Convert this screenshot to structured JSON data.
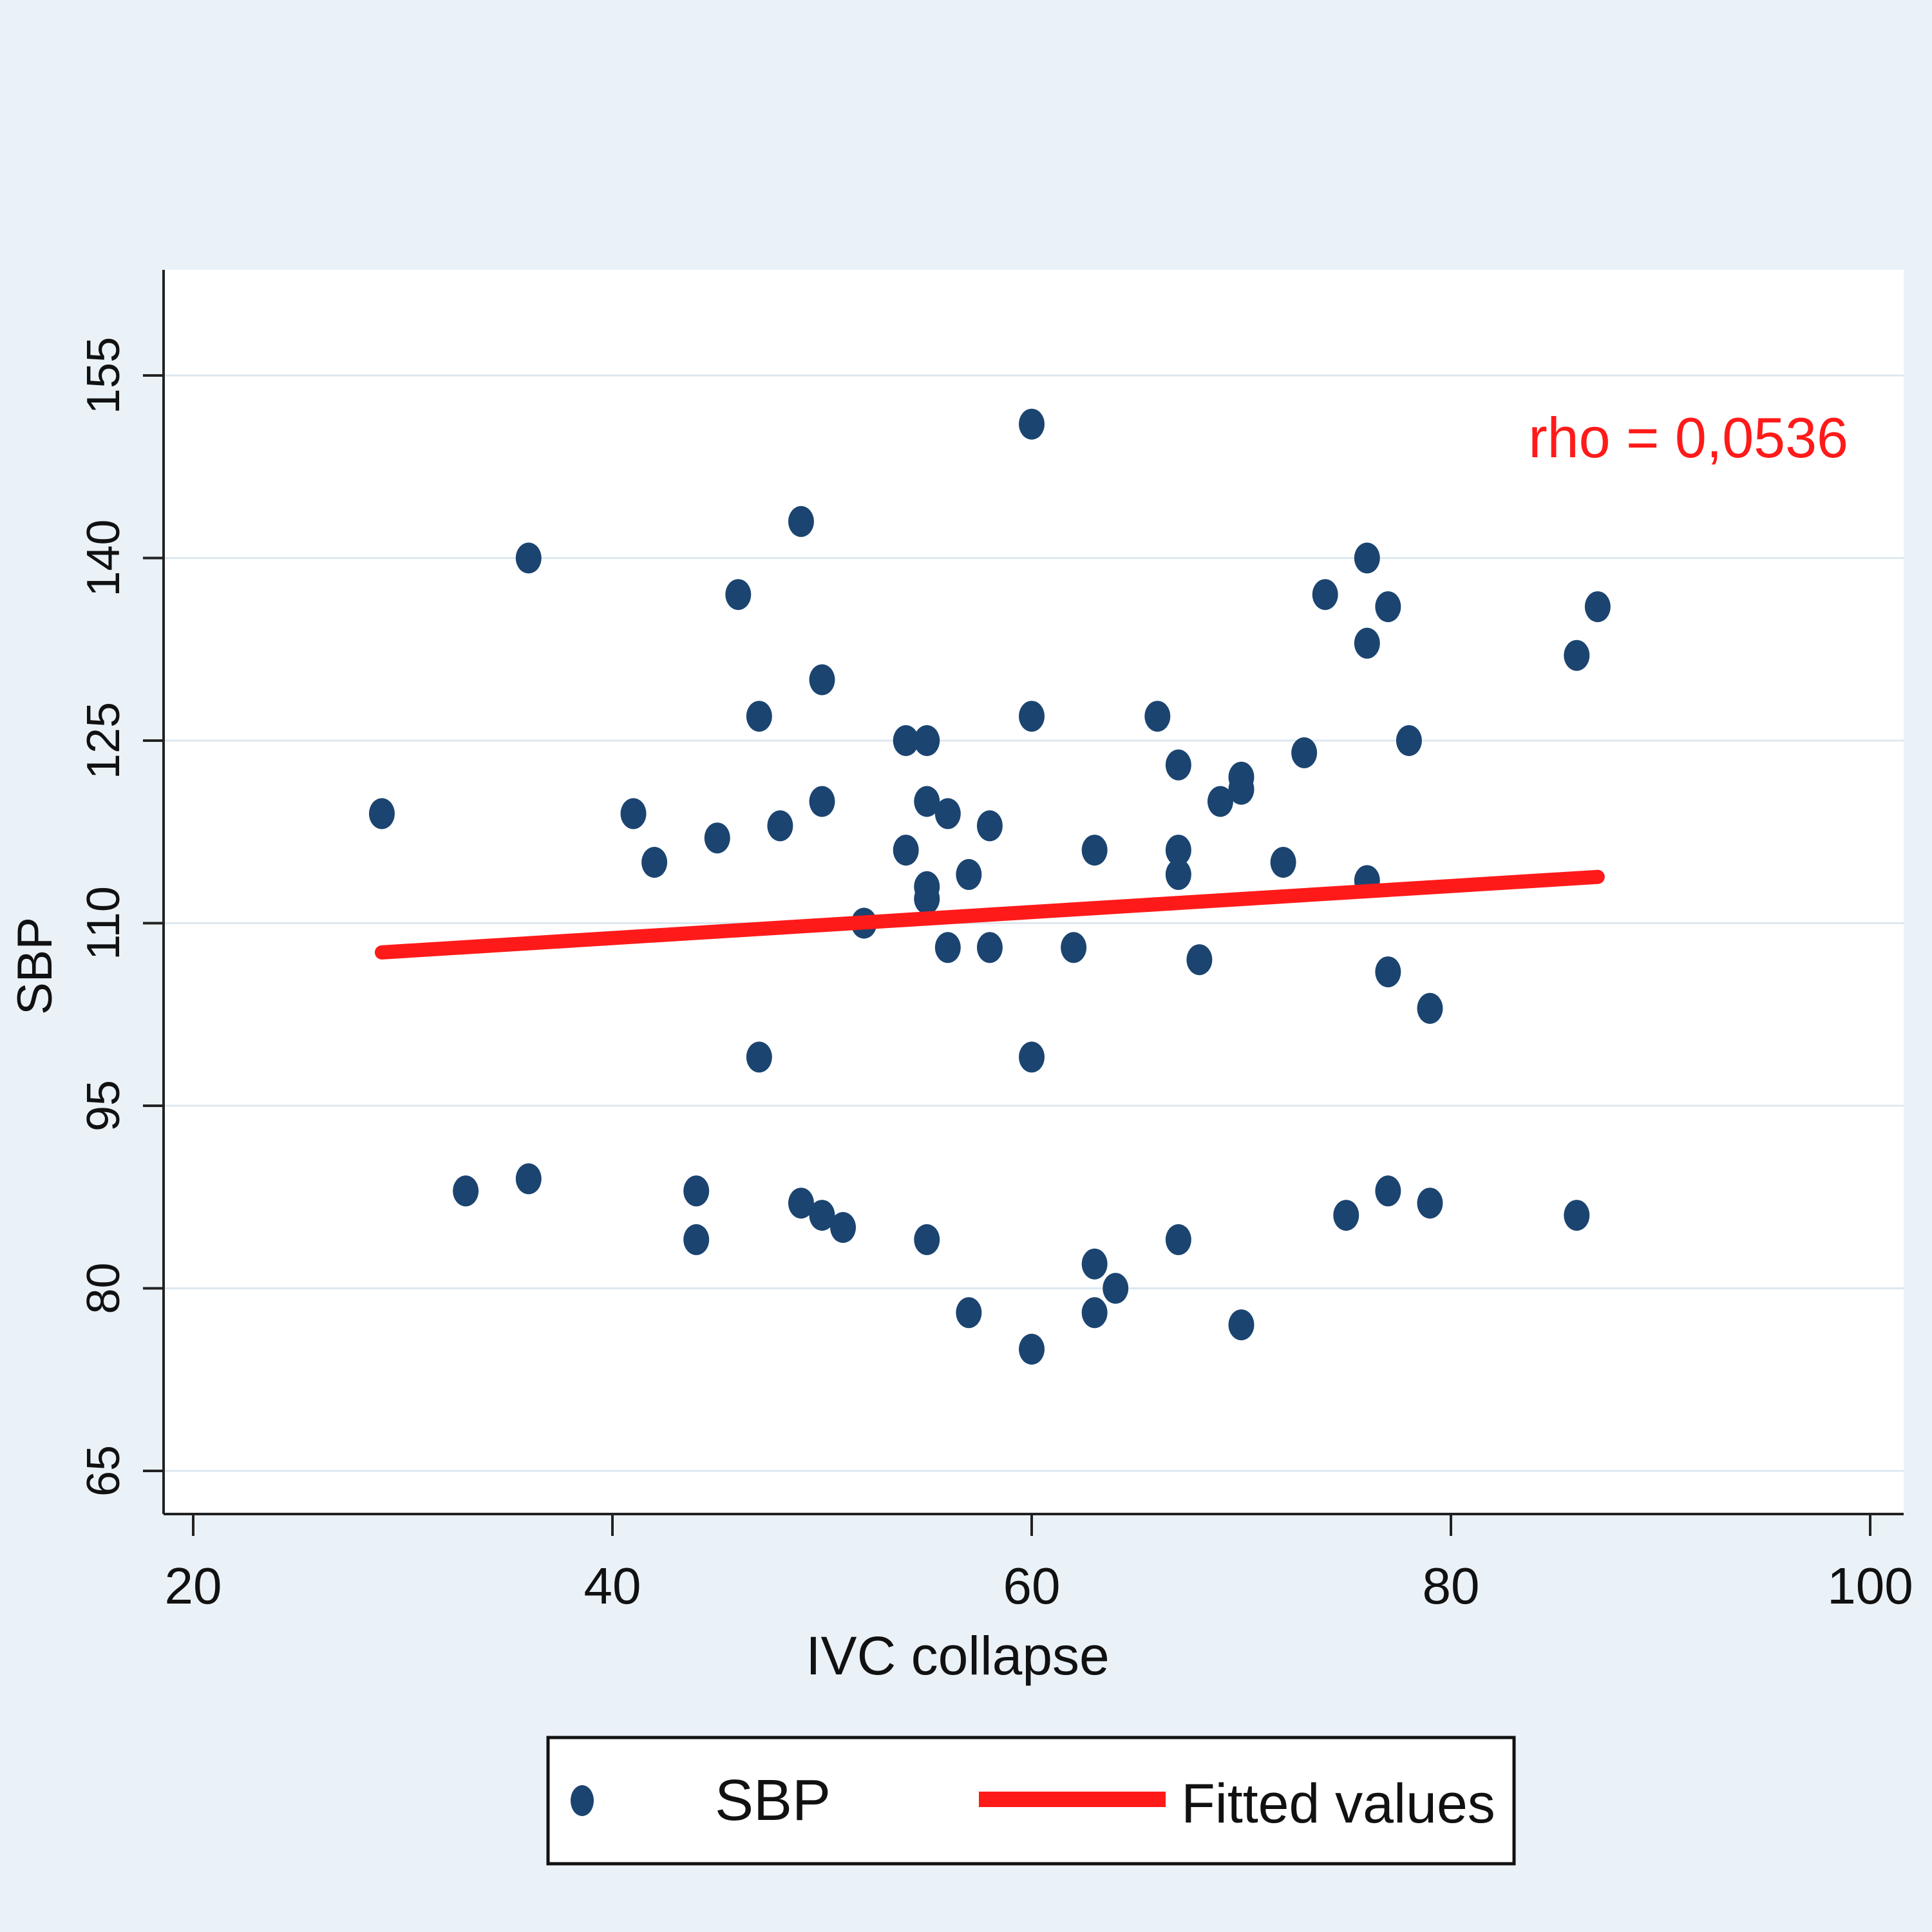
{
  "chart_data": {
    "type": "scatter",
    "xlabel": "IVC collapse",
    "ylabel": "SBP",
    "xlim": [
      20,
      100
    ],
    "ylim": [
      65,
      155
    ],
    "xticks": [
      20,
      40,
      60,
      80,
      100
    ],
    "yticks": [
      65,
      80,
      95,
      110,
      125,
      140,
      155
    ],
    "grid": "horizontal",
    "annotation": "rho = 0,0536",
    "legend": {
      "placement": "bottom",
      "entries": [
        "SBP",
        "Fitted values"
      ]
    },
    "series": [
      {
        "name": "SBP",
        "type": "scatter",
        "color": "#1b4470",
        "points": [
          [
            60,
            151
          ],
          [
            49,
            143
          ],
          [
            36,
            140
          ],
          [
            76,
            140
          ],
          [
            46,
            137
          ],
          [
            74,
            137
          ],
          [
            77,
            136
          ],
          [
            87,
            136
          ],
          [
            76,
            133
          ],
          [
            86,
            132
          ],
          [
            50,
            130
          ],
          [
            47,
            127
          ],
          [
            60,
            127
          ],
          [
            66,
            127
          ],
          [
            54,
            125
          ],
          [
            55,
            125
          ],
          [
            78,
            125
          ],
          [
            73,
            124
          ],
          [
            67,
            123
          ],
          [
            70,
            122
          ],
          [
            70,
            121
          ],
          [
            69,
            120
          ],
          [
            50,
            120
          ],
          [
            55,
            120
          ],
          [
            56,
            119
          ],
          [
            29,
            119
          ],
          [
            41,
            119
          ],
          [
            48,
            118
          ],
          [
            58,
            118
          ],
          [
            45,
            117
          ],
          [
            42,
            115
          ],
          [
            54,
            116
          ],
          [
            63,
            116
          ],
          [
            67,
            116
          ],
          [
            72,
            115
          ],
          [
            57,
            114
          ],
          [
            67,
            114
          ],
          [
            55,
            113
          ],
          [
            55,
            112
          ],
          [
            76,
            113.5
          ],
          [
            52,
            110
          ],
          [
            56,
            108
          ],
          [
            58,
            108
          ],
          [
            62,
            108
          ],
          [
            68,
            107
          ],
          [
            77,
            106
          ],
          [
            79,
            103
          ],
          [
            47,
            99
          ],
          [
            60,
            99
          ],
          [
            33,
            88
          ],
          [
            36,
            89
          ],
          [
            44,
            88
          ],
          [
            77,
            88
          ],
          [
            49,
            87
          ],
          [
            79,
            87
          ],
          [
            50,
            86
          ],
          [
            51,
            85
          ],
          [
            75,
            86
          ],
          [
            86,
            86
          ],
          [
            44,
            84
          ],
          [
            55,
            84
          ],
          [
            67,
            84
          ],
          [
            63,
            82
          ],
          [
            64,
            80
          ],
          [
            57,
            78
          ],
          [
            63,
            78
          ],
          [
            70,
            77
          ],
          [
            60,
            75
          ]
        ]
      },
      {
        "name": "Fitted values",
        "type": "line",
        "color": "#ff1a1a",
        "points": [
          [
            29,
            107.6
          ],
          [
            87,
            113.8
          ]
        ]
      }
    ]
  }
}
